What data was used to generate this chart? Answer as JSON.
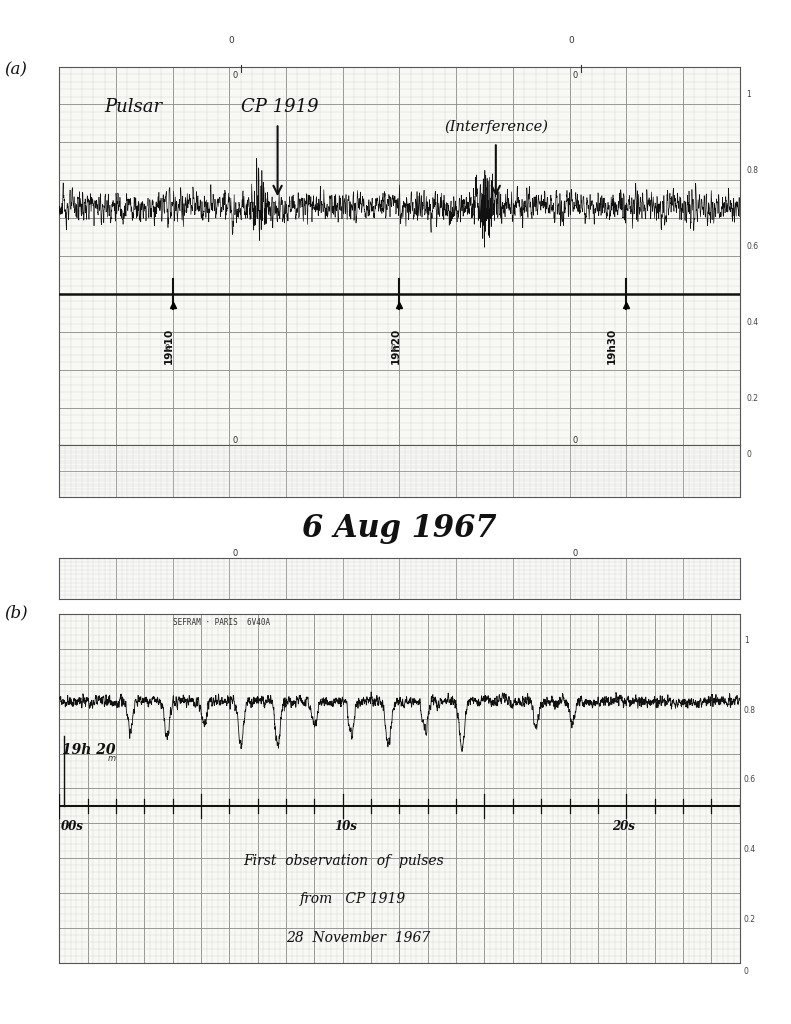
{
  "bg_color": "#ffffff",
  "paper_color": "#f8f8f5",
  "grid_major_color": "#999999",
  "grid_minor_color": "#dddddd",
  "trace_color": "#111111",
  "panel_a_label": "(a)",
  "panel_b_label": "(b)",
  "panel_a_date": "6 Aug 1967",
  "panel_b_header": "SEFRAM · PARIS  6V40A",
  "panel_b_annotation1": "First  observation  of  pulses",
  "panel_b_annotation2": "from   CP 1919",
  "panel_b_annotation3": "28  November  1967",
  "label_pulsar": "Pulsar",
  "label_cp1919": "CP 1919",
  "label_interference": "(Interference)",
  "label_1910": "19h10",
  "label_1920a": "19h20",
  "label_1930": "19h30",
  "label_19h20b": "19h 20",
  "label_00s": "00s",
  "label_10s": "10s",
  "label_20s": "20s",
  "right_scale_a": [
    "1",
    "0.8",
    "0.6",
    "0.4",
    "0.2",
    "0"
  ],
  "right_scale_b": [
    "1",
    "0.8",
    "0.6",
    "0.4",
    "0.2",
    "0"
  ]
}
